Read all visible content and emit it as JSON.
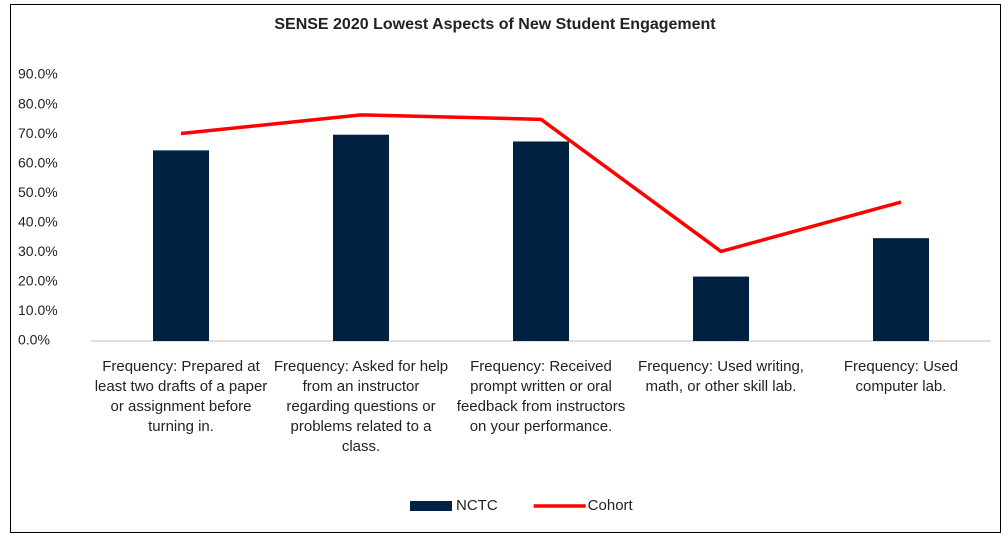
{
  "chart_data": {
    "type": "bar",
    "title": "SENSE 2020 Lowest Aspects of New Student Engagement",
    "categories": [
      "Frequency: Prepared at least two drafts of a paper or assignment before turning in.",
      "Frequency: Asked for help from an instructor regarding questions or problems related to a class.",
      "Frequency: Received prompt written or oral feedback from instructors on your performance.",
      "Frequency: Used writing, math, or other skill lab.",
      "Frequency: Used computer lab."
    ],
    "series": [
      {
        "name": "NCTC",
        "type": "bar",
        "color": "#002142",
        "values": [
          64.5,
          69.8,
          67.5,
          21.8,
          34.8
        ]
      },
      {
        "name": "Cohort",
        "type": "line",
        "color": "#ff0000",
        "values": [
          70.2,
          76.5,
          75.0,
          30.3,
          47.0
        ]
      }
    ],
    "ylim": [
      0,
      90
    ],
    "yticks": [
      {
        "value": 0,
        "label": "0.0%"
      },
      {
        "value": 10,
        "label": "10.0%"
      },
      {
        "value": 20,
        "label": "20.0%"
      },
      {
        "value": 30,
        "label": "30.0%"
      },
      {
        "value": 40,
        "label": "40.0%"
      },
      {
        "value": 50,
        "label": "50.0%"
      },
      {
        "value": 60,
        "label": "60.0%"
      },
      {
        "value": 70,
        "label": "70.0%"
      },
      {
        "value": 80,
        "label": "80.0%"
      },
      {
        "value": 90,
        "label": "90.0%"
      }
    ],
    "grid": false,
    "legend": "bottom"
  }
}
